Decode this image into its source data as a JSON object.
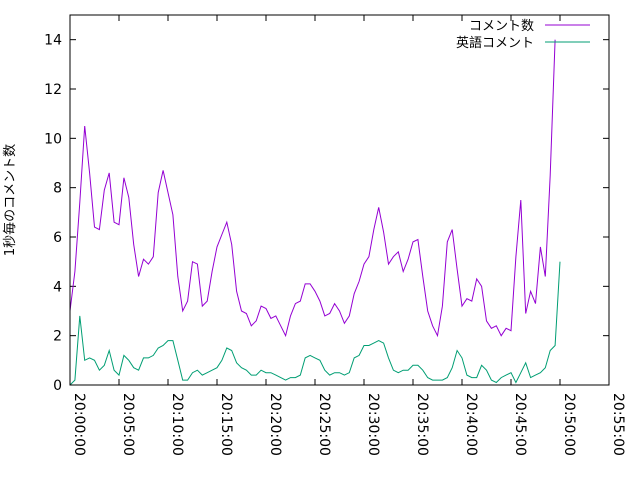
{
  "chart_data": {
    "type": "line",
    "title": "",
    "xlabel": "",
    "ylabel": "1秒毎のコメント数",
    "x_start": "20:00:00",
    "x_step_seconds": 30,
    "xlim": [
      "20:00:00",
      "20:55:00"
    ],
    "ylim": [
      0,
      15
    ],
    "xticks": [
      "20:00:00",
      "20:05:00",
      "20:10:00",
      "20:15:00",
      "20:20:00",
      "20:25:00",
      "20:30:00",
      "20:35:00",
      "20:40:00",
      "20:45:00",
      "20:50:00",
      "20:55:00"
    ],
    "yticks": [
      0,
      2,
      4,
      6,
      8,
      10,
      12,
      14
    ],
    "grid": false,
    "legend_position": "top-right",
    "series": [
      {
        "name": "コメント数",
        "color": "#9400d3",
        "values": [
          3.0,
          4.6,
          7.4,
          10.5,
          8.6,
          6.4,
          6.3,
          7.9,
          8.6,
          6.6,
          6.5,
          8.4,
          7.6,
          5.7,
          4.4,
          5.1,
          4.9,
          5.2,
          7.8,
          8.7,
          7.8,
          6.9,
          4.4,
          3.0,
          3.4,
          5.0,
          4.9,
          3.2,
          3.4,
          4.6,
          5.6,
          6.1,
          6.6,
          5.7,
          3.8,
          3.0,
          2.9,
          2.4,
          2.6,
          3.2,
          3.1,
          2.7,
          2.8,
          2.4,
          2.0,
          2.8,
          3.3,
          3.4,
          4.1,
          4.1,
          3.8,
          3.4,
          2.8,
          2.9,
          3.3,
          3.0,
          2.5,
          2.8,
          3.7,
          4.2,
          4.9,
          5.2,
          6.3,
          7.2,
          6.2,
          4.9,
          5.2,
          5.4,
          4.6,
          5.1,
          5.8,
          5.9,
          4.4,
          3.0,
          2.4,
          2.0,
          3.2,
          5.8,
          6.3,
          4.7,
          3.2,
          3.5,
          3.4,
          4.3,
          4.0,
          2.6,
          2.3,
          2.4,
          2.0,
          2.3,
          2.2,
          5.2,
          7.5,
          2.9,
          3.8,
          3.3,
          5.6,
          4.4,
          8.5,
          14.0
        ]
      },
      {
        "name": "英語コメント",
        "color": "#009e73",
        "values": [
          0.0,
          0.2,
          2.8,
          1.0,
          1.1,
          1.0,
          0.6,
          0.8,
          1.4,
          0.6,
          0.4,
          1.2,
          1.0,
          0.7,
          0.6,
          1.1,
          1.1,
          1.2,
          1.5,
          1.6,
          1.8,
          1.8,
          1.0,
          0.2,
          0.2,
          0.5,
          0.6,
          0.4,
          0.5,
          0.6,
          0.7,
          1.0,
          1.5,
          1.4,
          0.9,
          0.7,
          0.6,
          0.4,
          0.4,
          0.6,
          0.5,
          0.5,
          0.4,
          0.3,
          0.2,
          0.3,
          0.3,
          0.4,
          1.1,
          1.2,
          1.1,
          1.0,
          0.6,
          0.4,
          0.5,
          0.5,
          0.4,
          0.5,
          1.1,
          1.2,
          1.6,
          1.6,
          1.7,
          1.8,
          1.7,
          1.1,
          0.6,
          0.5,
          0.6,
          0.6,
          0.8,
          0.8,
          0.6,
          0.3,
          0.2,
          0.2,
          0.2,
          0.3,
          0.7,
          1.4,
          1.1,
          0.4,
          0.3,
          0.3,
          0.8,
          0.6,
          0.2,
          0.1,
          0.3,
          0.4,
          0.5,
          0.1,
          0.5,
          0.9,
          0.3,
          0.4,
          0.5,
          0.7,
          1.4,
          1.6,
          5.0
        ]
      }
    ]
  }
}
